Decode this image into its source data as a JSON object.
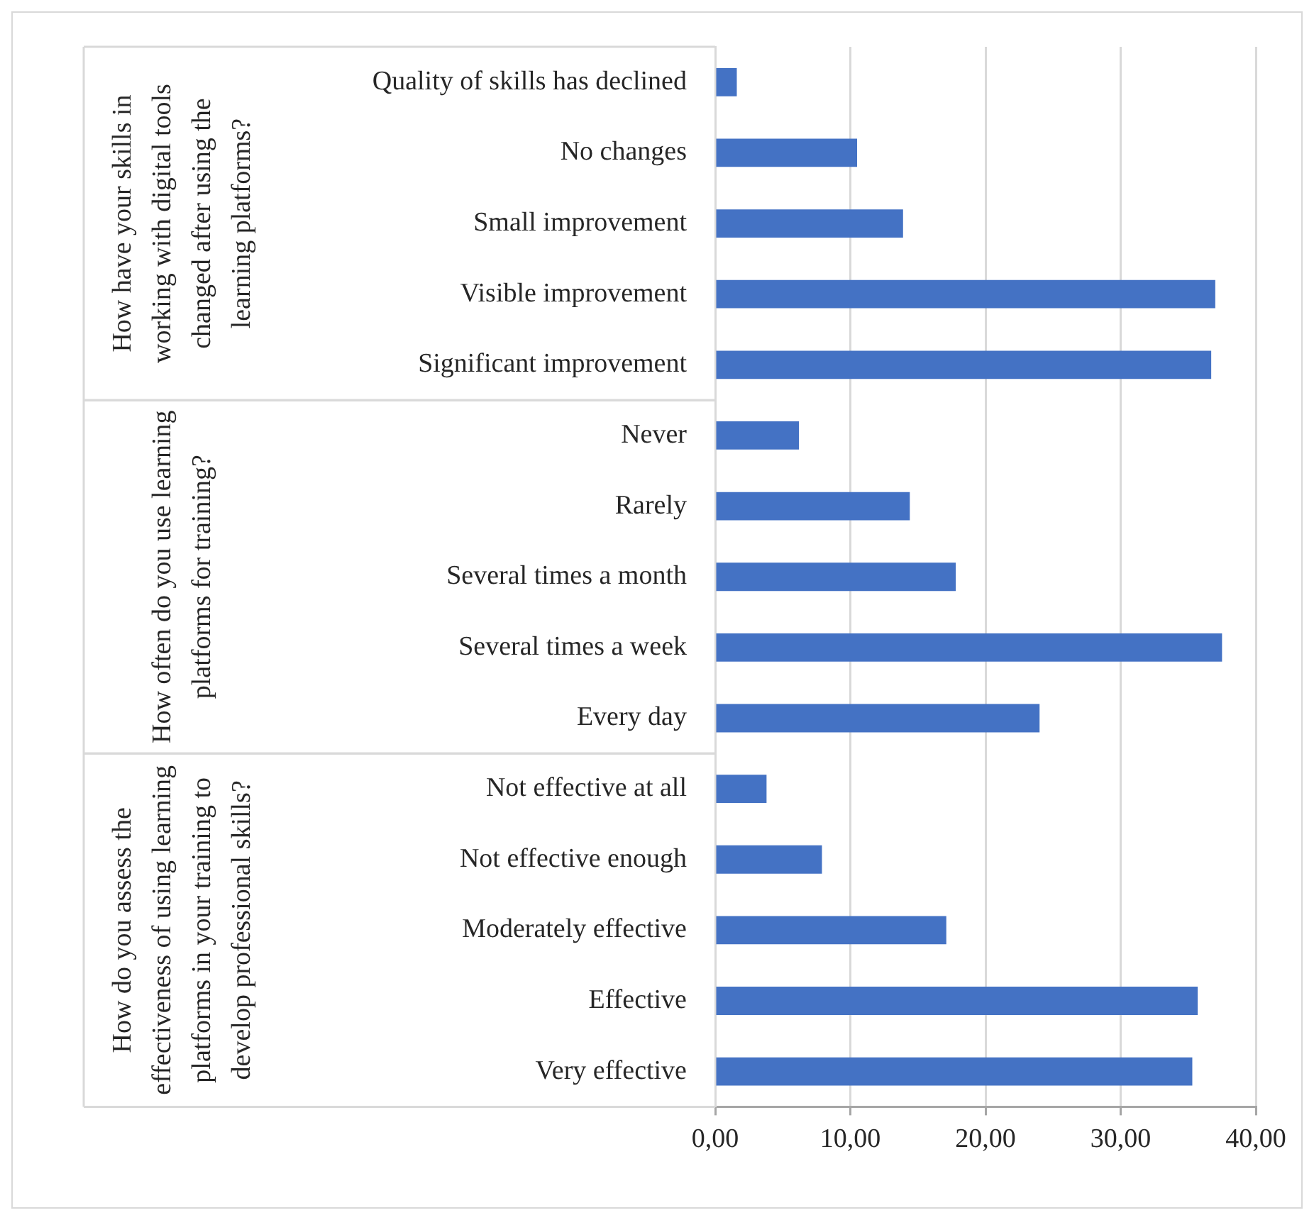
{
  "chart_data": {
    "type": "bar",
    "orientation": "horizontal",
    "categories": [
      "Quality of skills has declined",
      "No changes",
      "Small improvement",
      "Visible improvement",
      "Significant improvement",
      "Never",
      "Rarely",
      "Several times a month",
      "Several times a week",
      "Every day",
      "Not effective at all",
      "Not effective enough",
      "Moderately effective",
      "Effective",
      "Very effective"
    ],
    "values": [
      1.6,
      10.5,
      13.9,
      37.0,
      36.7,
      6.2,
      14.4,
      17.8,
      37.5,
      24.0,
      3.8,
      7.9,
      17.1,
      35.7,
      35.3
    ],
    "color": "#4472c4",
    "xlim": [
      0,
      40
    ],
    "xticks": [
      {
        "value": 0,
        "label": "0,00"
      },
      {
        "value": 10,
        "label": "10,00"
      },
      {
        "value": 20,
        "label": "20,00"
      },
      {
        "value": 30,
        "label": "30,00"
      },
      {
        "value": 40,
        "label": "40,00"
      }
    ],
    "grid": "x",
    "annotations": [
      "How have your skills in working with digital tools changed after using the learning platforms?",
      "How often do you use learning platforms for training?",
      "How do you assess the effectiveness of using learning platforms in your training to develop professional skills?"
    ]
  }
}
